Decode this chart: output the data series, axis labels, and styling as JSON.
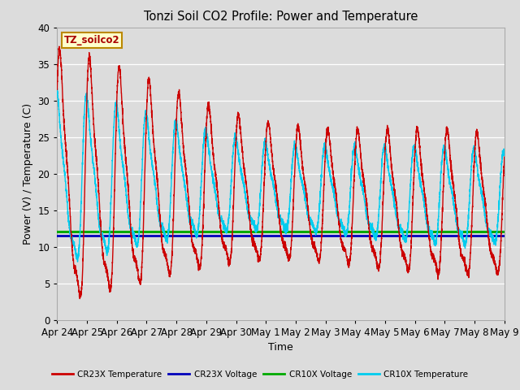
{
  "title": "Tonzi Soil CO2 Profile: Power and Temperature",
  "xlabel": "Time",
  "ylabel": "Power (V) / Temperature (C)",
  "ylim": [
    0,
    40
  ],
  "yticks": [
    0,
    5,
    10,
    15,
    20,
    25,
    30,
    35,
    40
  ],
  "x_tick_labels": [
    "Apr 24",
    "Apr 25",
    "Apr 26",
    "Apr 27",
    "Apr 28",
    "Apr 29",
    "Apr 30",
    "May 1",
    "May 2",
    "May 3",
    "May 4",
    "May 5",
    "May 6",
    "May 7",
    "May 8",
    "May 9"
  ],
  "cr23x_voltage": 11.5,
  "cr10x_voltage": 12.1,
  "cr23x_color": "#cc0000",
  "cr10x_color": "#00ccee",
  "cr23x_voltage_color": "#0000bb",
  "cr10x_voltage_color": "#00aa00",
  "bg_color": "#dcdcdc",
  "annotation_text": "TZ_soilco2",
  "annotation_bg": "#ffffcc",
  "annotation_border": "#bb8800",
  "legend_items": [
    "CR23X Temperature",
    "CR23X Voltage",
    "CR10X Voltage",
    "CR10X Temperature"
  ],
  "legend_colors": [
    "#cc0000",
    "#0000bb",
    "#00aa00",
    "#00ccee"
  ]
}
